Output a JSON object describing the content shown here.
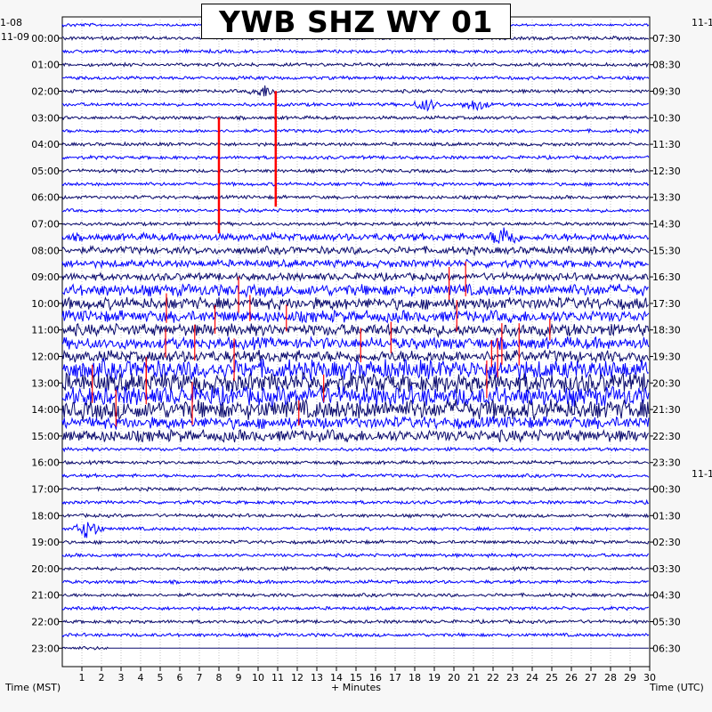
{
  "chart_data": {
    "type": "helicorder",
    "title": "YWB SHZ WY 01",
    "xlabel": "+ Minutes",
    "left_axis_label": "Time (MST)",
    "right_axis_label": "Time (UTC)",
    "x_ticks": [
      1,
      2,
      3,
      4,
      5,
      6,
      7,
      8,
      9,
      10,
      11,
      12,
      13,
      14,
      15,
      16,
      17,
      18,
      19,
      20,
      21,
      22,
      23,
      24,
      25,
      26,
      27,
      28,
      29,
      30
    ],
    "xlim": [
      0,
      30
    ],
    "traces_per_hour": 2,
    "num_traces": 48,
    "left_ticks": [
      "00:00",
      "01:00",
      "02:00",
      "03:00",
      "04:00",
      "05:00",
      "06:00",
      "07:00",
      "08:00",
      "09:00",
      "10:00",
      "11:00",
      "12:00",
      "13:00",
      "14:00",
      "15:00",
      "16:00",
      "17:00",
      "18:00",
      "19:00",
      "20:00",
      "21:00",
      "22:00",
      "23:00"
    ],
    "right_ticks": [
      "07:30",
      "08:30",
      "09:30",
      "10:30",
      "11:30",
      "12:30",
      "13:30",
      "14:30",
      "15:30",
      "16:30",
      "17:30",
      "18:30",
      "19:30",
      "20:30",
      "21:30",
      "22:30",
      "23:30",
      "00:30",
      "01:30",
      "02:30",
      "03:30",
      "04:30",
      "05:30",
      "06:30"
    ],
    "left_date_labels": [
      "1-08",
      "11-09"
    ],
    "right_date_labels": [
      "11-1"
    ],
    "trace_colors": [
      "#0000ff",
      "#0a0a6e"
    ],
    "clip_color": "#ff0000",
    "grid": true,
    "events": [
      {
        "hour_trace": 5,
        "minute": 10.3,
        "amplitude": "small"
      },
      {
        "hour_trace": 6,
        "minute": 18.6,
        "amplitude": "small"
      },
      {
        "hour_trace": 6,
        "minute": 21.1,
        "amplitude": "small"
      },
      {
        "hour_trace": 7,
        "minute": 10.9,
        "amplitude": "clipped"
      },
      {
        "hour_trace": 9,
        "minute": 8.0,
        "amplitude": "clipped"
      },
      {
        "hour_trace": 16,
        "minute": 22.6,
        "amplitude": "medium"
      },
      {
        "hour_trace": 38,
        "minute": 1.3,
        "amplitude": "medium"
      }
    ],
    "noise_periods": [
      {
        "from_trace": 20,
        "to_trace": 31,
        "level": "high"
      },
      {
        "from_trace": 26,
        "to_trace": 29,
        "level": "very high"
      },
      {
        "from_trace": 16,
        "to_trace": 19,
        "level": "moderate"
      }
    ]
  }
}
